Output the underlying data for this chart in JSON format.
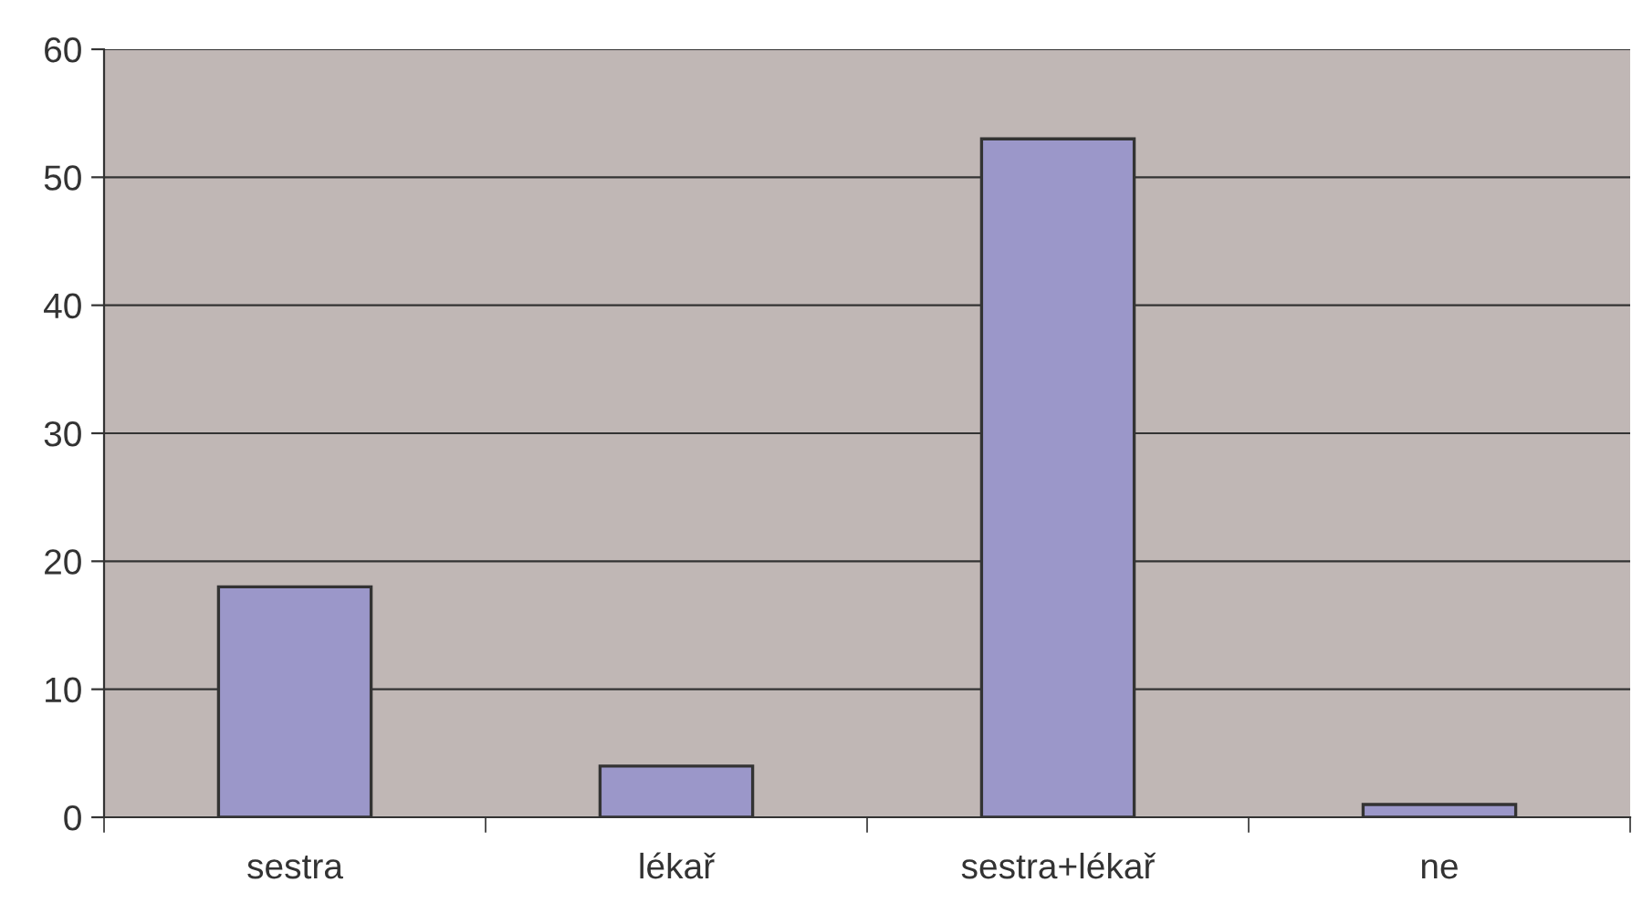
{
  "chart_data": {
    "type": "bar",
    "categories": [
      "sestra",
      "lékař",
      "sestra+lékař",
      "ne"
    ],
    "values": [
      18,
      4,
      53,
      1
    ],
    "color": "#9b97c9",
    "ylim": [
      0,
      60
    ],
    "yticks": [
      0,
      10,
      20,
      30,
      40,
      50,
      60
    ],
    "grid": "y"
  }
}
